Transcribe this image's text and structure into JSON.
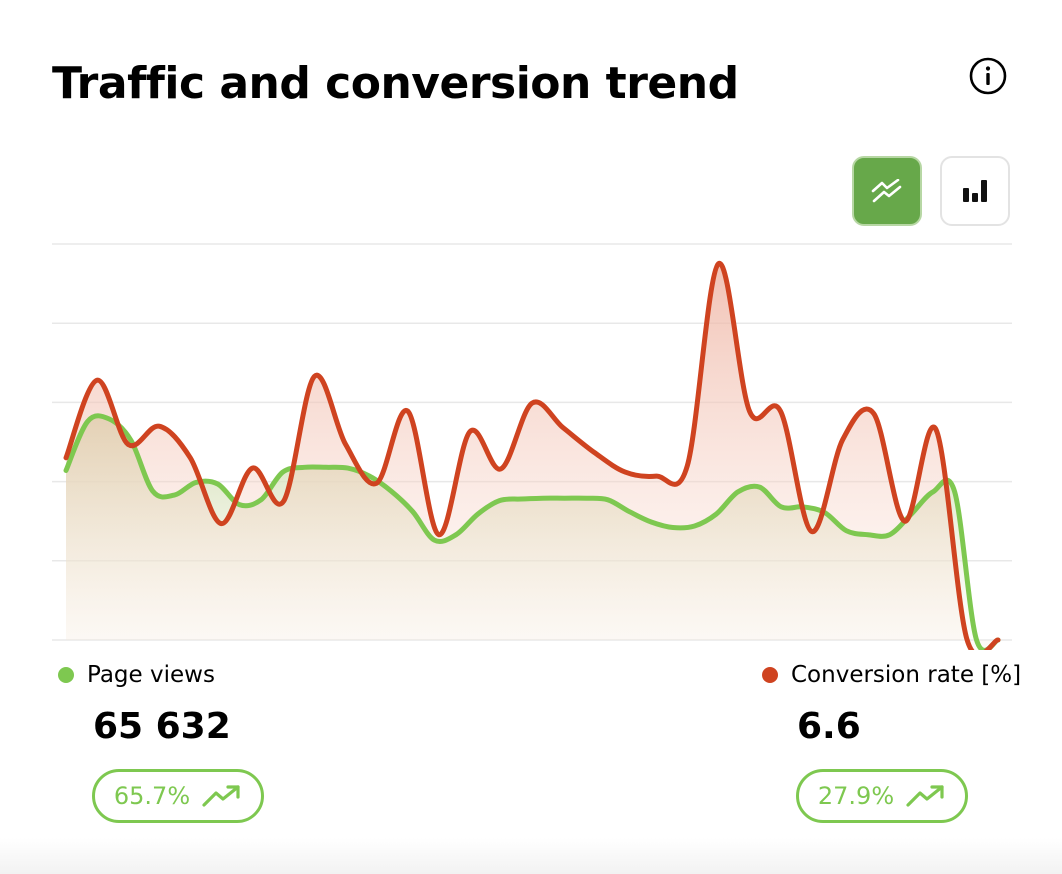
{
  "colors": {
    "page_views": "#7ec850",
    "conversion": "#cf4320",
    "accent": "#67a84a",
    "grid": "#e8e8e8"
  },
  "card": {
    "title": "Traffic and conversion trend",
    "info_icon": "info-icon"
  },
  "toolbar": {
    "line_chart_icon": "line-chart-icon",
    "bar_chart_icon": "bar-chart-icon",
    "active": "line"
  },
  "chart_data": {
    "type": "line",
    "title": "Traffic and conversion trend",
    "xlabel": "",
    "ylabel": "",
    "ylim": [
      0,
      5
    ],
    "grid": true,
    "legend": "bottom",
    "series": [
      {
        "name": "Page views",
        "fill": "area",
        "values": [
          2.14,
          2.76,
          2.79,
          2.52,
          1.88,
          1.83,
          1.99,
          1.97,
          1.71,
          1.77,
          2.12,
          2.18,
          2.18,
          2.17,
          2.07,
          1.88,
          1.62,
          1.26,
          1.33,
          1.59,
          1.76,
          1.78,
          1.79,
          1.79,
          1.79,
          1.77,
          1.62,
          1.49,
          1.42,
          1.44,
          1.59,
          1.87,
          1.93,
          1.68,
          1.68,
          1.61,
          1.38,
          1.33,
          1.33,
          1.59,
          1.87,
          1.87,
          0.01,
          0
        ]
      },
      {
        "name": "Conversion rate [%]",
        "fill": "area",
        "values": [
          2.3,
          3.28,
          2.47,
          2.7,
          2.3,
          1.47,
          2.17,
          1.75,
          3.33,
          2.47,
          1.98,
          2.89,
          1.33,
          2.63,
          2.16,
          2.99,
          2.68,
          2.37,
          2.12,
          2.07,
          2.2,
          4.75,
          2.89,
          2.89,
          1.37,
          2.53,
          2.86,
          1.5,
          2.66,
          0.01,
          0
        ]
      }
    ]
  },
  "legend": {
    "page_views": {
      "label": "Page views",
      "value": "65 632",
      "change": "65.7%",
      "trend_icon": "trending-up-icon"
    },
    "conversion": {
      "label": "Conversion rate [%]",
      "value": "6.6",
      "change": "27.9%",
      "trend_icon": "trending-up-icon"
    }
  }
}
